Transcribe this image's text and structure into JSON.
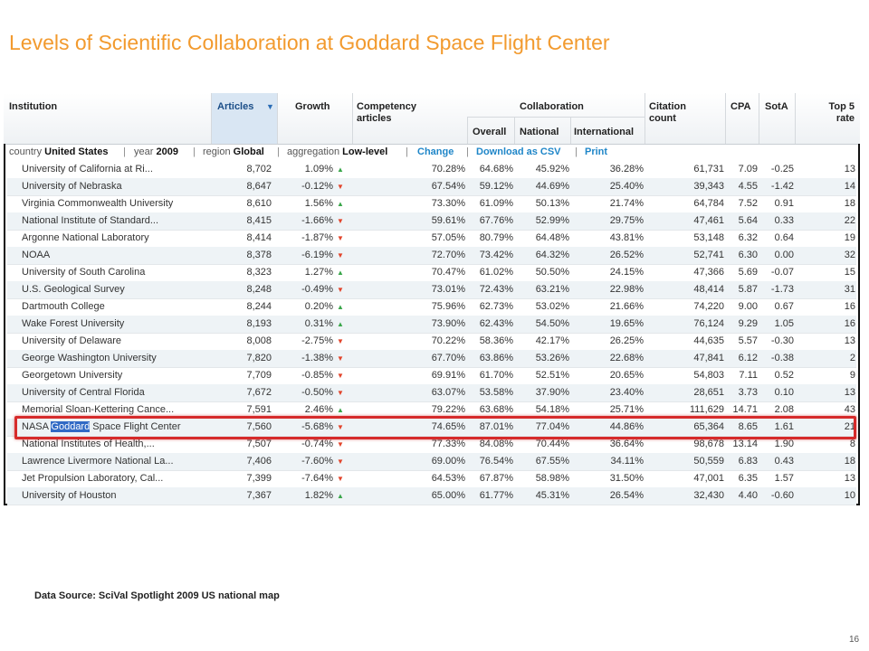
{
  "title": "Levels of Scientific Collaboration at Goddard Space Flight Center",
  "columns": {
    "institution": "Institution",
    "articles": "Articles",
    "growth": "Growth",
    "competency": "Competency articles",
    "collaboration": "Collaboration",
    "overall": "Overall",
    "national": "National",
    "international": "International",
    "citation": "Citation count",
    "cpa": "CPA",
    "sota": "SotA",
    "top5": "Top 5 rate"
  },
  "filters": {
    "country_label": "country",
    "country": "United States",
    "year_label": "year",
    "year": "2009",
    "region_label": "region",
    "region": "Global",
    "aggregation_label": "aggregation",
    "aggregation": "Low-level",
    "change": "Change",
    "download": "Download as CSV",
    "print": "Print",
    "separator": "|"
  },
  "rows": [
    {
      "name": "University of California at Ri...",
      "articles": "8,702",
      "growth": "1.09%",
      "trend": "up",
      "competency": "70.28%",
      "overall": "64.68%",
      "national": "45.92%",
      "international": "36.28%",
      "citation": "61,731",
      "cpa": "7.09",
      "sota": "-0.25",
      "top5": "13"
    },
    {
      "name": "University of Nebraska",
      "articles": "8,647",
      "growth": "-0.12%",
      "trend": "down",
      "competency": "67.54%",
      "overall": "59.12%",
      "national": "44.69%",
      "international": "25.40%",
      "citation": "39,343",
      "cpa": "4.55",
      "sota": "-1.42",
      "top5": "14"
    },
    {
      "name": "Virginia Commonwealth University",
      "articles": "8,610",
      "growth": "1.56%",
      "trend": "up",
      "competency": "73.30%",
      "overall": "61.09%",
      "national": "50.13%",
      "international": "21.74%",
      "citation": "64,784",
      "cpa": "7.52",
      "sota": "0.91",
      "top5": "18"
    },
    {
      "name": "National Institute of Standard...",
      "articles": "8,415",
      "growth": "-1.66%",
      "trend": "down",
      "competency": "59.61%",
      "overall": "67.76%",
      "national": "52.99%",
      "international": "29.75%",
      "citation": "47,461",
      "cpa": "5.64",
      "sota": "0.33",
      "top5": "22"
    },
    {
      "name": "Argonne National Laboratory",
      "articles": "8,414",
      "growth": "-1.87%",
      "trend": "down",
      "competency": "57.05%",
      "overall": "80.79%",
      "national": "64.48%",
      "international": "43.81%",
      "citation": "53,148",
      "cpa": "6.32",
      "sota": "0.64",
      "top5": "19"
    },
    {
      "name": "NOAA",
      "articles": "8,378",
      "growth": "-6.19%",
      "trend": "down",
      "competency": "72.70%",
      "overall": "73.42%",
      "national": "64.32%",
      "international": "26.52%",
      "citation": "52,741",
      "cpa": "6.30",
      "sota": "0.00",
      "top5": "32"
    },
    {
      "name": "University of South Carolina",
      "articles": "8,323",
      "growth": "1.27%",
      "trend": "up",
      "competency": "70.47%",
      "overall": "61.02%",
      "national": "50.50%",
      "international": "24.15%",
      "citation": "47,366",
      "cpa": "5.69",
      "sota": "-0.07",
      "top5": "15"
    },
    {
      "name": "U.S. Geological Survey",
      "articles": "8,248",
      "growth": "-0.49%",
      "trend": "down",
      "competency": "73.01%",
      "overall": "72.43%",
      "national": "63.21%",
      "international": "22.98%",
      "citation": "48,414",
      "cpa": "5.87",
      "sota": "-1.73",
      "top5": "31"
    },
    {
      "name": "Dartmouth College",
      "articles": "8,244",
      "growth": "0.20%",
      "trend": "up",
      "competency": "75.96%",
      "overall": "62.73%",
      "national": "53.02%",
      "international": "21.66%",
      "citation": "74,220",
      "cpa": "9.00",
      "sota": "0.67",
      "top5": "16"
    },
    {
      "name": "Wake Forest University",
      "articles": "8,193",
      "growth": "0.31%",
      "trend": "up",
      "competency": "73.90%",
      "overall": "62.43%",
      "national": "54.50%",
      "international": "19.65%",
      "citation": "76,124",
      "cpa": "9.29",
      "sota": "1.05",
      "top5": "16"
    },
    {
      "name": "University of Delaware",
      "articles": "8,008",
      "growth": "-2.75%",
      "trend": "down",
      "competency": "70.22%",
      "overall": "58.36%",
      "national": "42.17%",
      "international": "26.25%",
      "citation": "44,635",
      "cpa": "5.57",
      "sota": "-0.30",
      "top5": "13"
    },
    {
      "name": "George Washington University",
      "articles": "7,820",
      "growth": "-1.38%",
      "trend": "down",
      "competency": "67.70%",
      "overall": "63.86%",
      "national": "53.26%",
      "international": "22.68%",
      "citation": "47,841",
      "cpa": "6.12",
      "sota": "-0.38",
      "top5": "2"
    },
    {
      "name": "Georgetown University",
      "articles": "7,709",
      "growth": "-0.85%",
      "trend": "down",
      "competency": "69.91%",
      "overall": "61.70%",
      "national": "52.51%",
      "international": "20.65%",
      "citation": "54,803",
      "cpa": "7.11",
      "sota": "0.52",
      "top5": "9"
    },
    {
      "name": "University of Central Florida",
      "articles": "7,672",
      "growth": "-0.50%",
      "trend": "down",
      "competency": "63.07%",
      "overall": "53.58%",
      "national": "37.90%",
      "international": "23.40%",
      "citation": "28,651",
      "cpa": "3.73",
      "sota": "0.10",
      "top5": "13"
    },
    {
      "name": "Memorial Sloan-Kettering Cance...",
      "articles": "7,591",
      "growth": "2.46%",
      "trend": "up",
      "competency": "79.22%",
      "overall": "63.68%",
      "national": "54.18%",
      "international": "25.71%",
      "citation": "111,629",
      "cpa": "14.71",
      "sota": "2.08",
      "top5": "43"
    },
    {
      "name_pre": "NASA ",
      "name_hl": "Goddard",
      "name_post": " Space Flight Center",
      "articles": "7,560",
      "growth": "-5.68%",
      "trend": "down",
      "competency": "74.65%",
      "overall": "87.01%",
      "national": "77.04%",
      "international": "44.86%",
      "citation": "65,364",
      "cpa": "8.65",
      "sota": "1.61",
      "top5": "21"
    },
    {
      "name": "National Institutes of Health,...",
      "articles": "7,507",
      "growth": "-0.74%",
      "trend": "down",
      "competency": "77.33%",
      "overall": "84.08%",
      "national": "70.44%",
      "international": "36.64%",
      "citation": "98,678",
      "cpa": "13.14",
      "sota": "1.90",
      "top5": "8"
    },
    {
      "name": "Lawrence Livermore National La...",
      "articles": "7,406",
      "growth": "-7.60%",
      "trend": "down",
      "competency": "69.00%",
      "overall": "76.54%",
      "national": "67.55%",
      "international": "34.11%",
      "citation": "50,559",
      "cpa": "6.83",
      "sota": "0.43",
      "top5": "18"
    },
    {
      "name": "Jet Propulsion Laboratory, Cal...",
      "articles": "7,399",
      "growth": "-7.64%",
      "trend": "down",
      "competency": "64.53%",
      "overall": "67.87%",
      "national": "58.98%",
      "international": "31.50%",
      "citation": "47,001",
      "cpa": "6.35",
      "sota": "1.57",
      "top5": "13"
    },
    {
      "name": "University of Houston",
      "articles": "7,367",
      "growth": "1.82%",
      "trend": "up",
      "competency": "65.00%",
      "overall": "61.77%",
      "national": "45.31%",
      "international": "26.54%",
      "citation": "32,430",
      "cpa": "4.40",
      "sota": "-0.60",
      "top5": "10"
    }
  ],
  "highlighted_row_index": 15,
  "colors": {
    "title": "#f29a2e",
    "highlight_border": "#d62b2b",
    "up": "#3aa64a",
    "down": "#e2442b",
    "link": "#1f86c8"
  },
  "icons": {
    "up": "triangle-up-icon",
    "down": "triangle-down-icon",
    "sort": "sort-desc-icon"
  },
  "source": "Data Source: SciVal Spotlight 2009 US national map",
  "page_number": "16"
}
